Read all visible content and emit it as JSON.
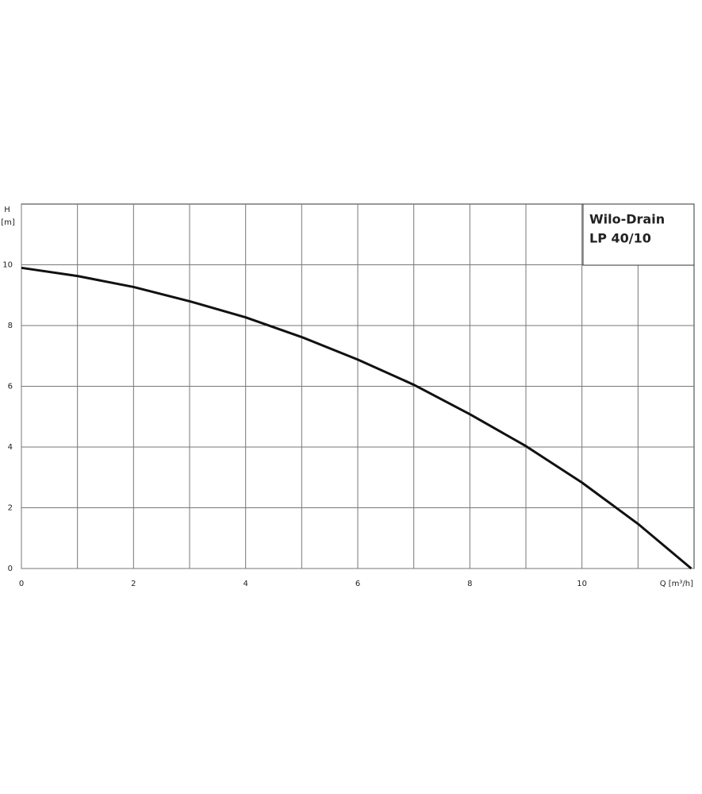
{
  "chart_data": {
    "type": "line",
    "label_box": [
      "Wilo-Drain",
      "LP 40/10"
    ],
    "y_label": "H",
    "y_unit": "[m]",
    "x_label": "Q [m³/h]",
    "series": [
      {
        "color": "#111111",
        "x": [
          0,
          1,
          2,
          3,
          4,
          5,
          6,
          7,
          8,
          9,
          10,
          11,
          11.95
        ],
        "values": [
          9.9,
          9.63,
          9.27,
          8.8,
          8.27,
          7.62,
          6.88,
          6.05,
          5.08,
          4.03,
          2.83,
          1.47,
          0
        ]
      }
    ],
    "xlim": [
      0,
      12
    ],
    "ylim": [
      0,
      12
    ],
    "xticks": [
      0,
      2,
      4,
      6,
      8,
      10
    ],
    "x_minor_gridlines": [
      1,
      3,
      5,
      7,
      9,
      11
    ],
    "yticks": [
      0,
      2,
      4,
      6,
      8,
      10
    ],
    "grid": true
  }
}
